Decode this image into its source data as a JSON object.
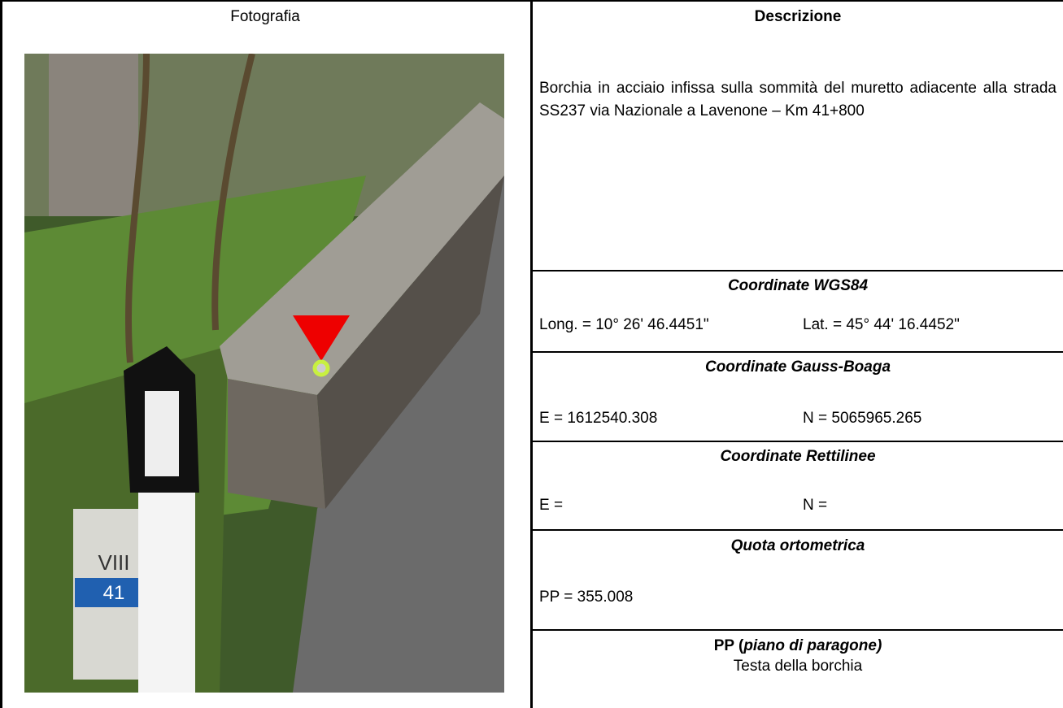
{
  "left_header": "Fotografia",
  "photo": {
    "milestone_labels": [
      "VIII",
      "41"
    ]
  },
  "right": {
    "header": "Descrizione",
    "description": "Borchia in acciaio infissa sulla sommità del muretto adiacente alla strada SS237 via Nazionale a Lavenone – Km 41+800",
    "sections": [
      {
        "title": "Coordinate WGS84",
        "fields": [
          "Long. = 10° 26' 46.4451\"",
          "Lat. = 45° 44' 16.4452\""
        ]
      },
      {
        "title": "Coordinate Gauss-Boaga",
        "fields": [
          "E = 1612540.308",
          "N = 5065965.265"
        ]
      },
      {
        "title": "Coordinate Rettilinee",
        "fields": [
          "E =",
          "N ="
        ]
      },
      {
        "title": "Quota ortometrica",
        "fields": [
          "PP = 355.008"
        ]
      }
    ],
    "pp": {
      "title_prefix": "PP (",
      "title_italic": "piano di paragone)",
      "text": "Testa della borchia"
    }
  }
}
